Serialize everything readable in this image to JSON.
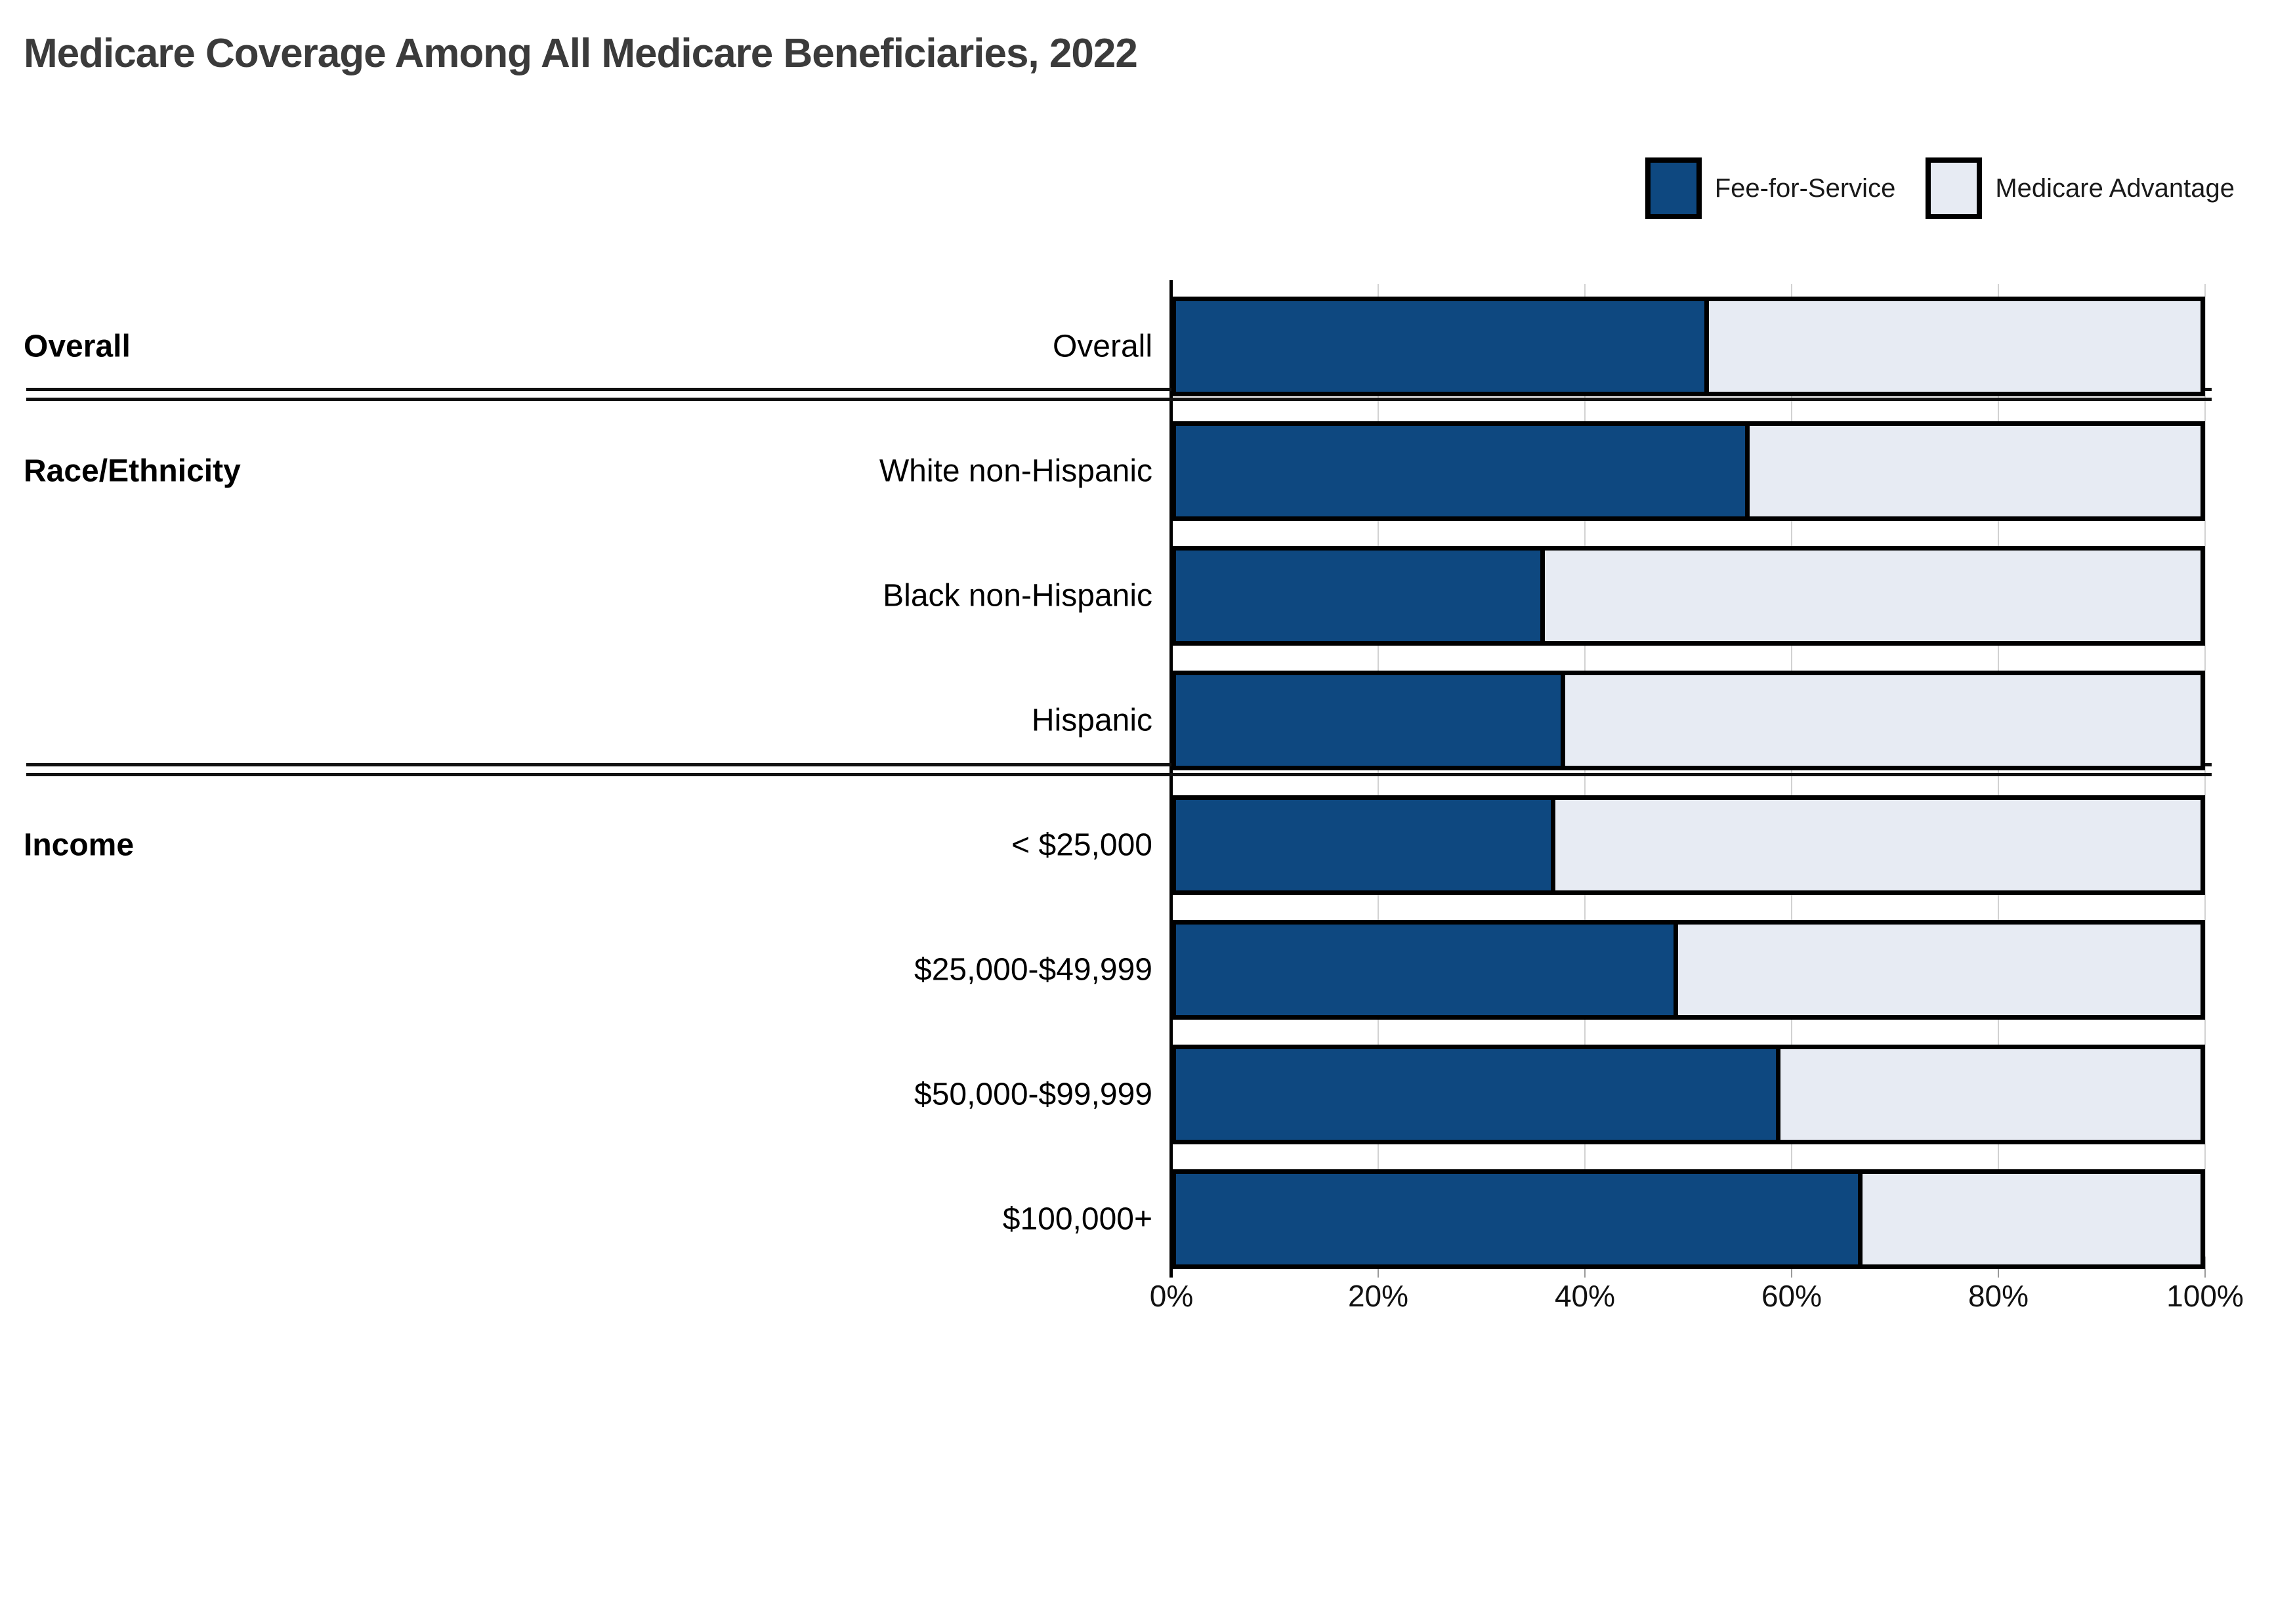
{
  "title": "Medicare Coverage Among All Medicare Beneficiaries, 2022",
  "legend": [
    {
      "label": "Fee-for-Service",
      "color": "#0e4880"
    },
    {
      "label": "Medicare Advantage",
      "color": "#e7ebf3"
    }
  ],
  "colors": {
    "fee_for_service": "#0e4880",
    "medicare_advantage": "#e7ebf3",
    "bar_border": "#000000",
    "title_text": "#3b3b3b",
    "gridline": "#d2d2d2"
  },
  "chart_data": {
    "type": "bar",
    "stacked": true,
    "orientation": "horizontal",
    "title": "Medicare Coverage Among All Medicare Beneficiaries, 2022",
    "categories": [
      "Overall",
      "White non-Hispanic",
      "Black non-Hispanic",
      "Hispanic",
      "< $25,000",
      "$25,000-$49,999",
      "$50,000-$99,999",
      "$100,000+"
    ],
    "groups": [
      {
        "label": "Overall",
        "first_row": 0
      },
      {
        "label": "Race/Ethnicity",
        "first_row": 1
      },
      {
        "label": "Income",
        "first_row": 4
      }
    ],
    "series": [
      {
        "name": "Fee-for-Service",
        "color": "#0e4880",
        "values": [
          52,
          56,
          36,
          38,
          37,
          49,
          59,
          67
        ]
      },
      {
        "name": "Medicare Advantage",
        "color": "#e7ebf3",
        "values": [
          48,
          44,
          64,
          62,
          63,
          51,
          41,
          33
        ]
      }
    ],
    "x_ticks": [
      "0%",
      "20%",
      "40%",
      "60%",
      "80%",
      "100%"
    ],
    "xlim": [
      0,
      100
    ],
    "xlabel": "",
    "ylabel": "",
    "grid": true,
    "legend_position": "top-right"
  }
}
